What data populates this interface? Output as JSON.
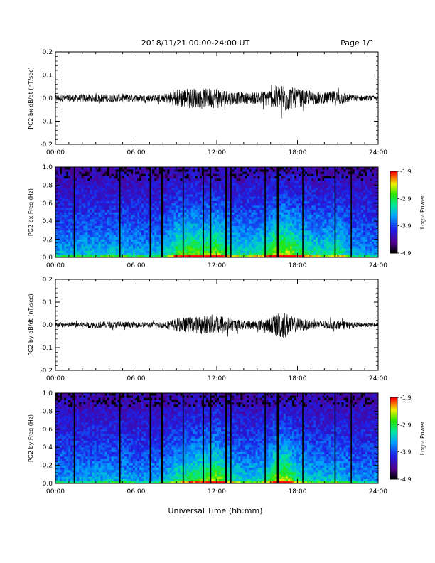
{
  "header": {
    "title": "2018/11/21  00:00-24:00 UT",
    "page": "Page 1/1"
  },
  "xlabel": "Universal Time (hh:mm)",
  "colors": {
    "background": "#ffffff",
    "axis": "#000000",
    "spectrogram_background": "#2b2bd6"
  },
  "chart_data": [
    {
      "type": "line",
      "ylabel": "PG2 bx dB/dt (nT/sec)",
      "x_ticks": [
        "00:00",
        "06:00",
        "12:00",
        "18:00",
        "24:00"
      ],
      "xlim": [
        0,
        24
      ],
      "ylim": [
        -0.2,
        0.2
      ],
      "y_ticks": [
        "0.2",
        "0.1",
        "0.0",
        "-0.1",
        "-0.2"
      ],
      "envelope": {
        "x_hours": [
          0,
          1,
          2,
          3,
          4,
          5,
          6,
          7,
          8,
          8.5,
          9,
          10,
          11,
          12,
          13,
          14,
          15,
          16,
          16.5,
          17,
          17.5,
          18,
          19,
          20,
          21,
          22,
          23,
          24
        ],
        "amplitude": [
          0.015,
          0.015,
          0.017,
          0.018,
          0.018,
          0.02,
          0.015,
          0.015,
          0.018,
          0.025,
          0.04,
          0.045,
          0.04,
          0.048,
          0.03,
          0.025,
          0.028,
          0.04,
          0.06,
          0.07,
          0.05,
          0.04,
          0.03,
          0.025,
          0.035,
          0.015,
          0.012,
          0.01
        ]
      }
    },
    {
      "type": "heatmap",
      "ylabel": "PG2 bx Freq (Hz)",
      "x_ticks": [
        "00:00",
        "06:00",
        "12:00",
        "18:00",
        "24:00"
      ],
      "xlim": [
        0,
        24
      ],
      "ylim": [
        0.0,
        1.0
      ],
      "y_ticks": [
        "1.0",
        "0.8",
        "0.6",
        "0.4",
        "0.2",
        "0.0"
      ],
      "colorbar": {
        "label": "Log₁₀ Power",
        "ticks": [
          "-1.9",
          "-2.9",
          "-3.9",
          "-4.9"
        ],
        "range": [
          -4.9,
          -1.9
        ]
      },
      "data_gaps_hours": [
        1.4,
        4.8,
        7.05,
        7.95,
        9.5,
        11.0,
        11.55,
        12.7,
        13.05,
        15.6,
        16.55,
        18.4,
        20.8,
        22.0
      ]
    },
    {
      "type": "line",
      "ylabel": "PG2 by dB/dt (nT/sec)",
      "x_ticks": [
        "00:00",
        "06:00",
        "12:00",
        "18:00",
        "24:00"
      ],
      "xlim": [
        0,
        24
      ],
      "ylim": [
        -0.2,
        0.2
      ],
      "y_ticks": [
        "0.2",
        "0.1",
        "0.0",
        "-0.1",
        "-0.2"
      ],
      "envelope": {
        "x_hours": [
          0,
          1,
          2,
          3,
          4,
          5,
          6,
          7,
          8,
          8.5,
          9,
          10,
          11,
          12,
          13,
          14,
          15,
          16,
          16.5,
          17,
          17.5,
          18,
          19,
          20,
          21,
          22,
          23,
          24
        ],
        "amplitude": [
          0.012,
          0.012,
          0.013,
          0.015,
          0.015,
          0.015,
          0.012,
          0.012,
          0.015,
          0.02,
          0.028,
          0.035,
          0.04,
          0.05,
          0.03,
          0.02,
          0.02,
          0.035,
          0.055,
          0.06,
          0.04,
          0.03,
          0.02,
          0.018,
          0.02,
          0.012,
          0.01,
          0.01
        ]
      }
    },
    {
      "type": "heatmap",
      "ylabel": "PG2 by Freq (Hz)",
      "x_ticks": [
        "00:00",
        "06:00",
        "12:00",
        "18:00",
        "24:00"
      ],
      "xlim": [
        0,
        24
      ],
      "ylim": [
        0.0,
        1.0
      ],
      "y_ticks": [
        "1.0",
        "0.8",
        "0.6",
        "0.4",
        "0.2",
        "0.0"
      ],
      "colorbar": {
        "label": "Log₁₀ Power",
        "ticks": [
          "-1.9",
          "-2.9",
          "-3.9",
          "-4.9"
        ],
        "range": [
          -4.9,
          -1.9
        ]
      },
      "data_gaps_hours": [
        1.4,
        4.8,
        7.05,
        7.95,
        9.5,
        11.0,
        11.55,
        12.7,
        13.05,
        15.6,
        16.55,
        18.4,
        20.8,
        22.0
      ]
    }
  ]
}
